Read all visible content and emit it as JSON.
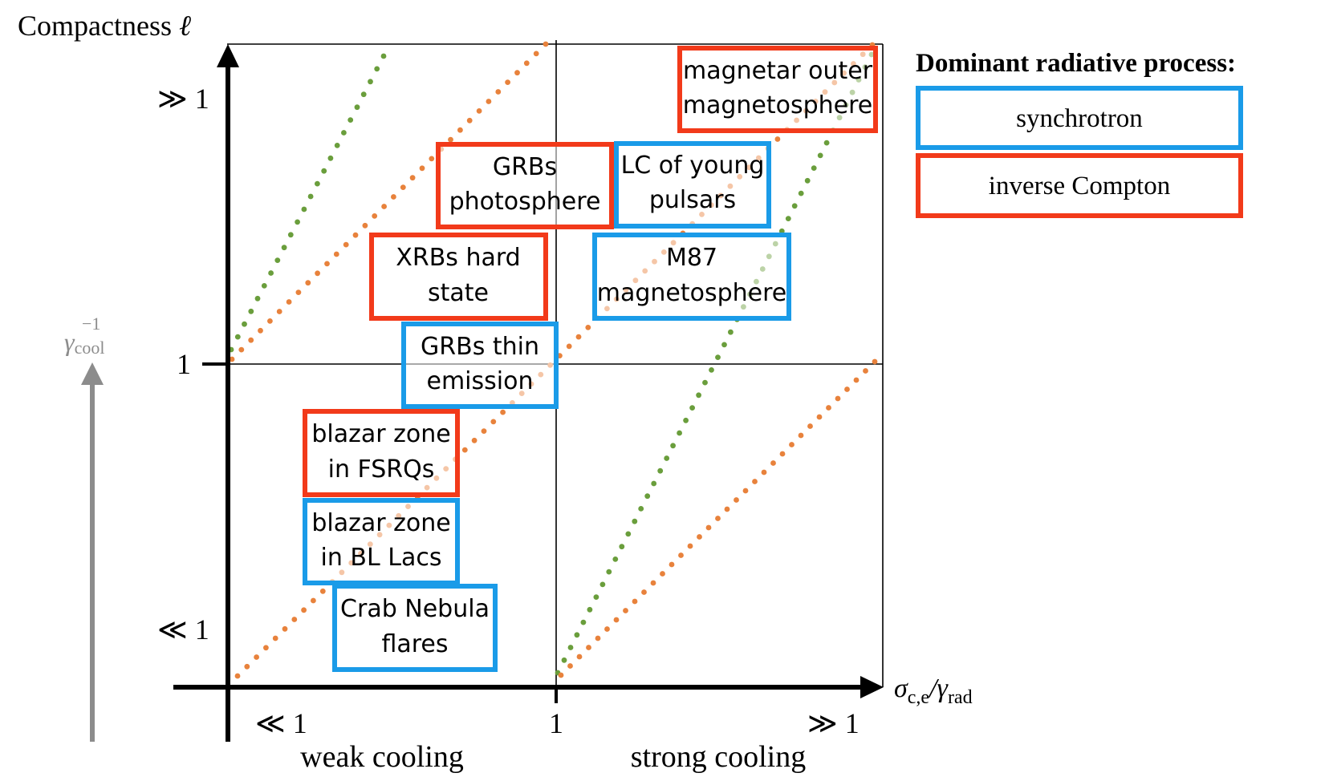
{
  "colors": {
    "synchrotron": "#1a9be8",
    "inverse_compton": "#f23a1a",
    "green_dots": "#6a9e3c",
    "orange_dots": "#e8823c",
    "cool_arrow": "#8c8c8c"
  },
  "axes": {
    "y_title": "Compactness",
    "y_title_symbol": "ℓ",
    "y_tick_high": "≫ 1",
    "y_tick_mid": "1",
    "y_tick_low": "≪ 1",
    "x_label_main": "σ",
    "x_label_sub": "c,e",
    "x_label_sep": "/γ",
    "x_label_sub2": "rad",
    "x_tick_low": "≪ 1",
    "x_tick_mid": "1",
    "x_tick_high": "≫ 1",
    "x_region_left": "weak cooling",
    "x_region_right": "strong cooling",
    "cool_label_main": "γ",
    "cool_label_sub": "cool",
    "cool_label_sup": "−1"
  },
  "legend": {
    "title": "Dominant radiative process:",
    "synchrotron": "synchrotron",
    "inverse_compton": "inverse Compton"
  },
  "sources": [
    {
      "id": "magnetar",
      "process": "inverse_compton",
      "line1": "magnetar outer",
      "line2": "magnetosphere"
    },
    {
      "id": "grbs-photosphere",
      "process": "inverse_compton",
      "line1": "GRBs",
      "line2": "photosphere"
    },
    {
      "id": "lc-young-pulsars",
      "process": "synchrotron",
      "line1": "LC of young",
      "line2": "pulsars"
    },
    {
      "id": "xrbs-hard",
      "process": "inverse_compton",
      "line1": "XRBs hard",
      "line2": "state"
    },
    {
      "id": "m87",
      "process": "synchrotron",
      "line1": "M87",
      "line2": "magnetosphere"
    },
    {
      "id": "grbs-thin",
      "process": "synchrotron",
      "line1": "GRBs thin",
      "line2": "emission"
    },
    {
      "id": "blazar-fsrq",
      "process": "inverse_compton",
      "line1": "blazar zone",
      "line2": "in FSRQs"
    },
    {
      "id": "blazar-bllac",
      "process": "synchrotron",
      "line1": "blazar zone",
      "line2": "in BL Lacs"
    },
    {
      "id": "crab",
      "process": "synchrotron",
      "line1": "Crab Nebula",
      "line2": "flares"
    }
  ]
}
